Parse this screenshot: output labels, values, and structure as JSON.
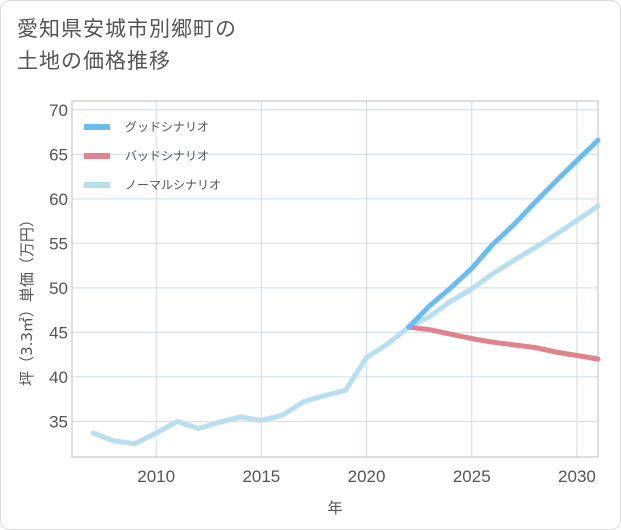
{
  "page": {
    "title_line1": "愛知県安城市別郷町の",
    "title_line2": "土地の価格推移"
  },
  "colors": {
    "good": "#6bbdf0",
    "bad": "#e0838c",
    "normal": "#b7dff0",
    "grid": "#cfdde8",
    "plot_border": "#bfbfbf"
  },
  "chart_data": {
    "type": "line",
    "xlabel": "年",
    "ylabel": "坪（3.3㎡）単価（万円）",
    "xlim": [
      2006,
      2031
    ],
    "ylim": [
      31,
      71
    ],
    "x_ticks": [
      2010,
      2015,
      2020,
      2025,
      2030
    ],
    "y_ticks": [
      35,
      40,
      45,
      50,
      55,
      60,
      65,
      70
    ],
    "grid": true,
    "legend_position": "top-left",
    "series": [
      {
        "name": "グッドシナリオ",
        "color": "#6bbdf0",
        "x": [
          2022,
          2023,
          2024,
          2025,
          2026,
          2027,
          2028,
          2029,
          2030,
          2031
        ],
        "y": [
          45.6,
          48.0,
          50.0,
          52.2,
          54.9,
          57.1,
          59.6,
          62.0,
          64.3,
          66.6
        ]
      },
      {
        "name": "バッドシナリオ",
        "color": "#e0838c",
        "x": [
          2022,
          2023,
          2024,
          2025,
          2026,
          2027,
          2028,
          2029,
          2030,
          2031
        ],
        "y": [
          45.6,
          45.3,
          44.8,
          44.3,
          43.9,
          43.6,
          43.3,
          42.8,
          42.4,
          42.0
        ]
      },
      {
        "name": "ノーマルシナリオ",
        "color": "#b7dff0",
        "x": [
          2007,
          2008,
          2009,
          2010,
          2011,
          2012,
          2013,
          2014,
          2015,
          2016,
          2017,
          2018,
          2019,
          2020,
          2021,
          2022,
          2023,
          2024,
          2025,
          2026,
          2027,
          2028,
          2029,
          2030,
          2031
        ],
        "y": [
          33.7,
          32.8,
          32.5,
          33.7,
          35.0,
          34.2,
          34.9,
          35.5,
          35.1,
          35.7,
          37.2,
          37.9,
          38.5,
          42.2,
          43.7,
          45.6,
          46.8,
          48.5,
          49.9,
          51.6,
          53.1,
          54.5,
          56.0,
          57.6,
          59.2
        ]
      }
    ]
  }
}
